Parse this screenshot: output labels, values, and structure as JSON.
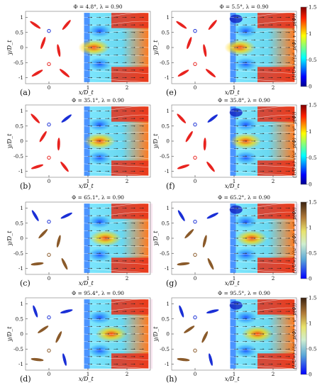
{
  "figure": {
    "panels": [
      {
        "label": "(a)",
        "title": "Φ = 4.8°, λ = 0.90"
      },
      {
        "label": "(b)",
        "title": "Φ = 35.1°, λ = 0.90"
      },
      {
        "label": "(c)",
        "title": "Φ = 65.1°, λ = 0.90"
      },
      {
        "label": "(d)",
        "title": "Φ = 95.4°, λ = 0.90"
      },
      {
        "label": "(e)",
        "title": "Φ = 5.5°, λ = 0.90"
      },
      {
        "label": "(f)",
        "title": "Φ = 35.8°, λ = 0.90"
      },
      {
        "label": "(g)",
        "title": "Φ = 65.2°, λ = 0.90"
      },
      {
        "label": "(h)",
        "title": "Φ = 95.5°, λ = 0.90"
      }
    ],
    "x_ticks": [
      "0",
      "1",
      "2"
    ],
    "y_ticks": [
      "1",
      "0.5",
      "0",
      "-0.5",
      "-1"
    ],
    "x_axis_label": "x/D_t",
    "y_axis_label": "y/D_t",
    "colorbar": {
      "ticks": [
        "1.5",
        "1",
        "0.5",
        "0"
      ],
      "label": "(1/U∞)·√(u²_p(Φ) + v²_p(Φ))",
      "colors_jet": [
        "#00008f",
        "#0000ff",
        "#0080ff",
        "#00ffff",
        "#80ff80",
        "#ffff00",
        "#ff8000",
        "#ff0000",
        "#800000"
      ],
      "colors_hot": [
        "#0000ff",
        "#3a5bd0",
        "#74b3c8",
        "#cfe9c0",
        "#e8e070",
        "#c8a24a",
        "#8a5a2a",
        "#3a2210"
      ]
    },
    "blade_colors": {
      "red": "#e8231f",
      "blue": "#1a2fd6",
      "brown": "#8a5a2a"
    }
  }
}
